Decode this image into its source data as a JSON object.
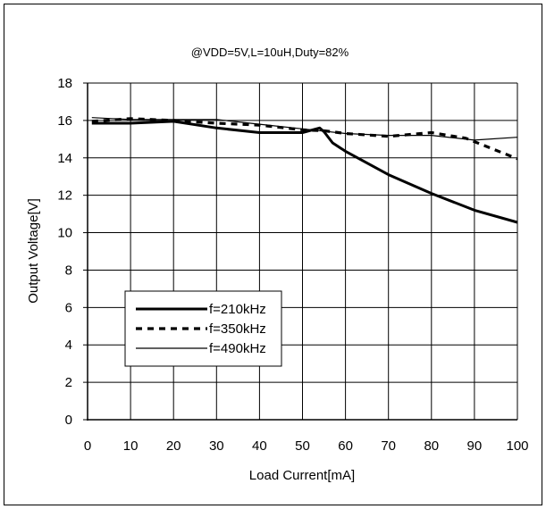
{
  "chart_data": {
    "type": "line",
    "title": "@VDD=5V,L=10uH,Duty=82%",
    "xlabel": "Load Current[mA]",
    "ylabel": "Output Voltage[V]",
    "xlim": [
      0,
      100
    ],
    "ylim": [
      0,
      18
    ],
    "xticks": [
      0,
      10,
      20,
      30,
      40,
      50,
      60,
      70,
      80,
      90,
      100
    ],
    "yticks": [
      0,
      2,
      4,
      6,
      8,
      10,
      12,
      14,
      16,
      18
    ],
    "grid": true,
    "legend_position": "bottom-left",
    "series": [
      {
        "name": "f=210kHz",
        "style": "thick-solid",
        "x": [
          1,
          10,
          20,
          30,
          40,
          50,
          54,
          55,
          57,
          60,
          70,
          80,
          90,
          100
        ],
        "y": [
          15.85,
          15.85,
          15.95,
          15.6,
          15.35,
          15.35,
          15.6,
          15.4,
          14.8,
          14.35,
          13.1,
          12.1,
          11.2,
          10.55
        ]
      },
      {
        "name": "f=350kHz",
        "style": "thick-dashed",
        "x": [
          1,
          10,
          20,
          30,
          40,
          50,
          55,
          60,
          70,
          80,
          88,
          100
        ],
        "y": [
          15.95,
          16.1,
          16.0,
          15.85,
          15.75,
          15.5,
          15.45,
          15.3,
          15.15,
          15.35,
          15.05,
          13.95
        ]
      },
      {
        "name": "f=490kHz",
        "style": "thin-solid",
        "x": [
          1,
          10,
          20,
          30,
          40,
          50,
          60,
          70,
          80,
          90,
          100
        ],
        "y": [
          16.15,
          16.05,
          16.05,
          16.05,
          15.8,
          15.55,
          15.3,
          15.2,
          15.2,
          14.95,
          15.1
        ]
      }
    ]
  }
}
